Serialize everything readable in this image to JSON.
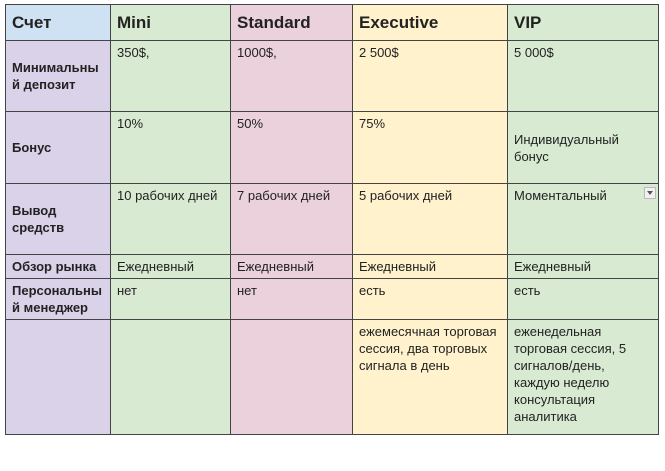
{
  "table": {
    "header": [
      "Счет",
      "Mini",
      "Standard",
      "Executive",
      "VIP"
    ],
    "rows": [
      {
        "label": "Минимальный депозит",
        "cells": [
          "350$,",
          "1000$,",
          "2 500$",
          "5 000$"
        ]
      },
      {
        "label": "Бонус",
        "cells": [
          "10%",
          "50%",
          "75%",
          "Индивидуальный бонус"
        ]
      },
      {
        "label": "Вывод средств",
        "cells": [
          "10 рабочих дней",
          "7 рабочих дней",
          "5 рабочих дней",
          "Моментальный"
        ]
      },
      {
        "label": "Обзор рынка",
        "cells": [
          "Ежедневный",
          "Ежедневный",
          "Ежедневный",
          "Ежедневный"
        ]
      },
      {
        "label": "Персональный менеджер",
        "cells": [
          "нет",
          "нет",
          "есть",
          "есть"
        ]
      },
      {
        "cells": [
          null,
          null,
          "ежемесячная торговая сессия, два торговых сигнала в день",
          "еженедельная торговая сессия, 5 сигналов/день, каждую неделю консультация аналитика"
        ]
      }
    ]
  }
}
